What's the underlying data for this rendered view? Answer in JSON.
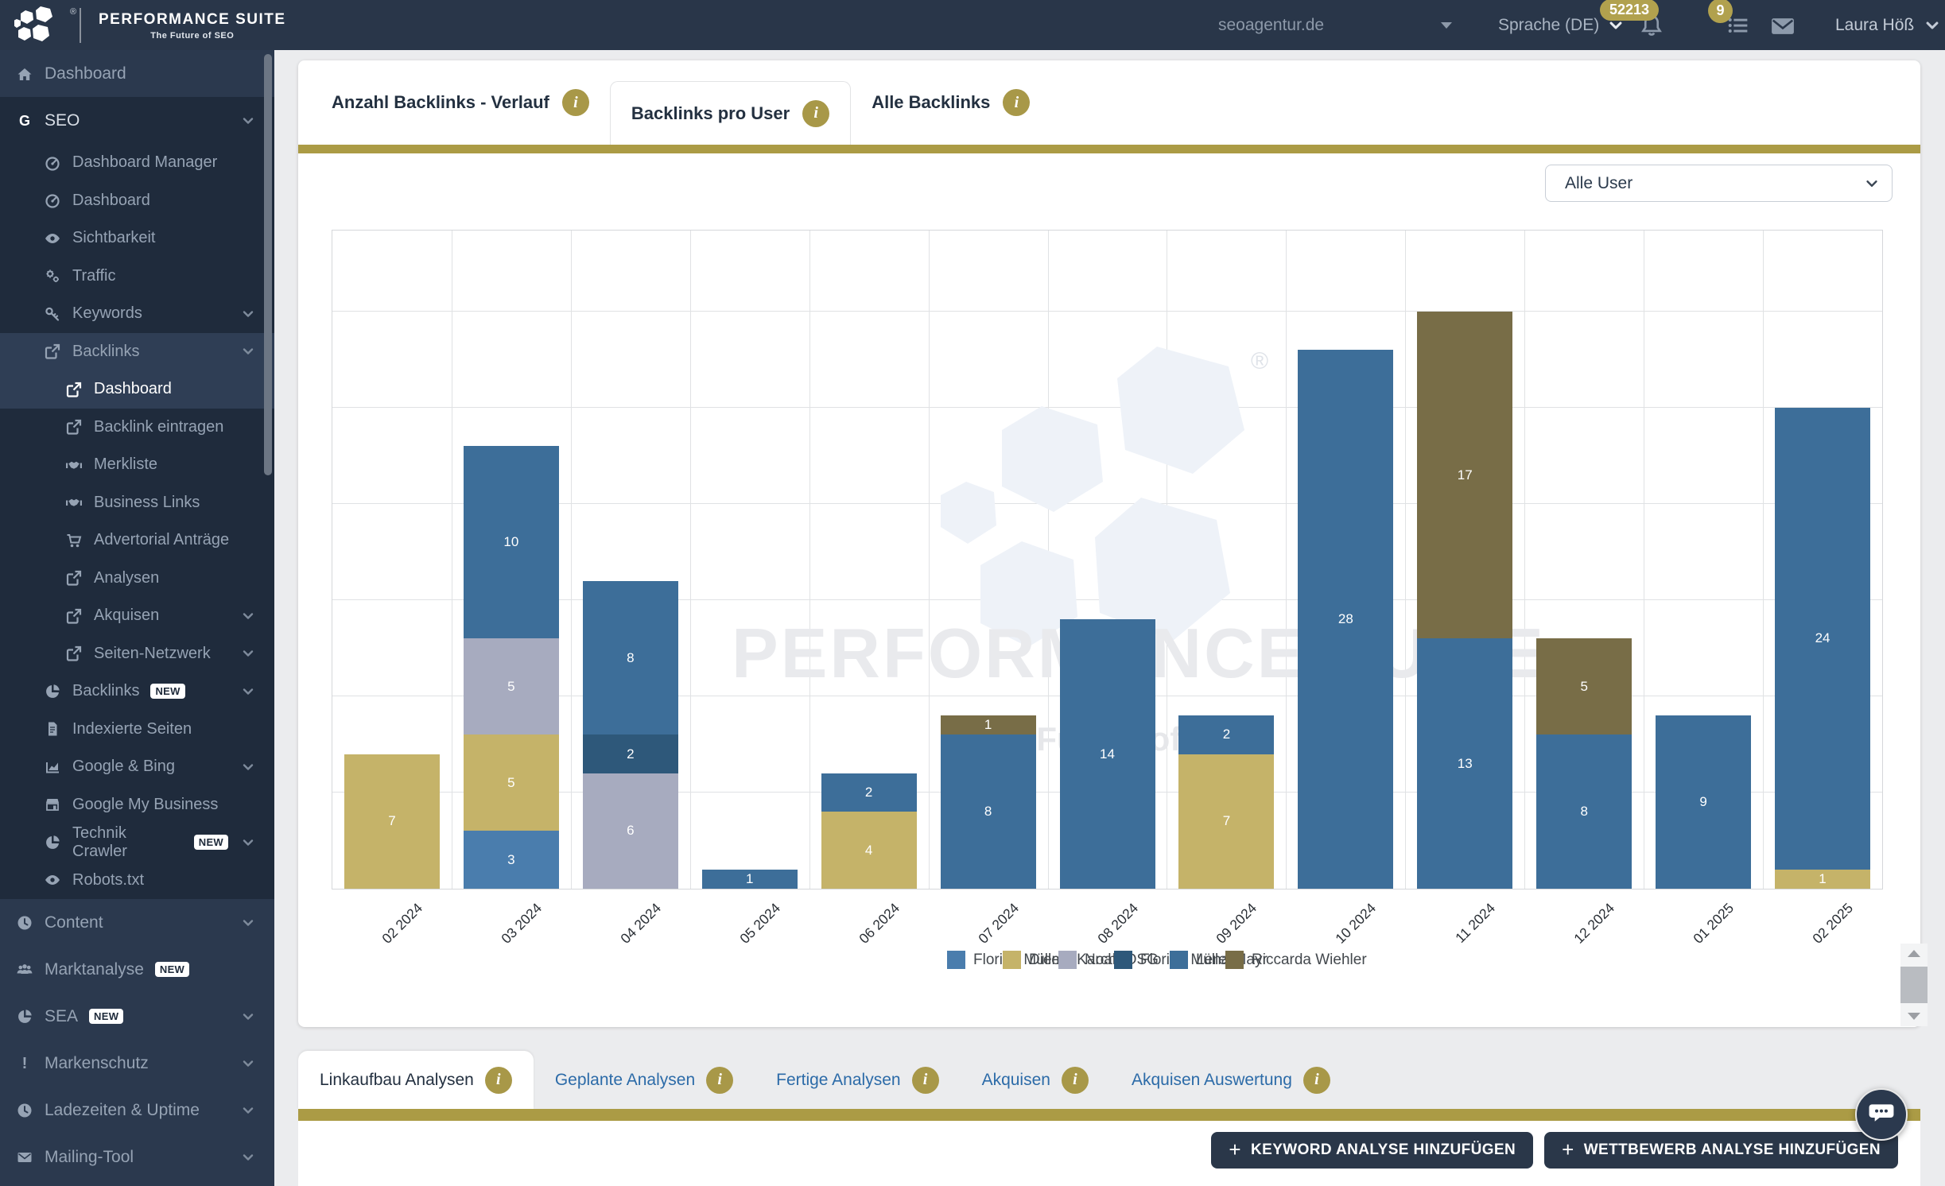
{
  "header": {
    "logo_title": "PERFORMANCE SUITE",
    "logo_tagline": "The Future of SEO",
    "registered_mark": "®",
    "domain": "seoagentur.de",
    "language_label": "Sprache (DE)",
    "notifications_badge": "52213",
    "tasks_badge": "9",
    "user_name": "Laura Höß"
  },
  "sidebar": {
    "items": [
      {
        "label": "Dashboard",
        "icon": "home",
        "level": 0,
        "section": "base"
      },
      {
        "label": "SEO",
        "icon": "g",
        "level": 0,
        "section": "dark",
        "chevron": true,
        "header": true
      },
      {
        "label": "Dashboard Manager",
        "icon": "gauge",
        "level": 1,
        "section": "dark"
      },
      {
        "label": "Dashboard",
        "icon": "gauge",
        "level": 1,
        "section": "dark"
      },
      {
        "label": "Sichtbarkeit",
        "icon": "eye",
        "level": 1,
        "section": "dark"
      },
      {
        "label": "Traffic",
        "icon": "gears",
        "level": 1,
        "section": "dark"
      },
      {
        "label": "Keywords",
        "icon": "key",
        "level": 1,
        "section": "dark",
        "chevron": true
      },
      {
        "label": "Backlinks",
        "icon": "external",
        "level": 1,
        "section": "hl",
        "chevron": true
      },
      {
        "label": "Dashboard",
        "icon": "external",
        "level": 2,
        "section": "hl",
        "active": true
      },
      {
        "label": "Backlink eintragen",
        "icon": "external",
        "level": 2,
        "section": "dark"
      },
      {
        "label": "Merkliste",
        "icon": "handshake",
        "level": 2,
        "section": "dark"
      },
      {
        "label": "Business Links",
        "icon": "handshake",
        "level": 2,
        "section": "dark"
      },
      {
        "label": "Advertorial Anträge",
        "icon": "cart",
        "level": 2,
        "section": "dark"
      },
      {
        "label": "Analysen",
        "icon": "external",
        "level": 2,
        "section": "dark"
      },
      {
        "label": "Akquisen",
        "icon": "external",
        "level": 2,
        "section": "dark",
        "chevron": true
      },
      {
        "label": "Seiten-Netzwerk",
        "icon": "external",
        "level": 2,
        "section": "dark",
        "chevron": true
      },
      {
        "label": "Backlinks",
        "icon": "pie",
        "level": 1,
        "section": "dark",
        "chevron": true,
        "badge": "NEW"
      },
      {
        "label": "Indexierte Seiten",
        "icon": "doc",
        "level": 1,
        "section": "dark"
      },
      {
        "label": "Google & Bing",
        "icon": "chart",
        "level": 1,
        "section": "dark",
        "chevron": true
      },
      {
        "label": "Google My Business",
        "icon": "store",
        "level": 1,
        "section": "dark"
      },
      {
        "label": "Technik Crawler",
        "icon": "pie",
        "level": 1,
        "section": "dark",
        "chevron": true,
        "badge": "NEW"
      },
      {
        "label": "Robots.txt",
        "icon": "eye",
        "level": 1,
        "section": "dark"
      },
      {
        "label": "Content",
        "icon": "clock",
        "level": 0,
        "section": "base",
        "chevron": true
      },
      {
        "label": "Marktanalyse",
        "icon": "users",
        "level": 0,
        "section": "base",
        "badge": "NEW"
      },
      {
        "label": "SEA",
        "icon": "pie",
        "level": 0,
        "section": "base",
        "chevron": true,
        "badge": "NEW"
      },
      {
        "label": "Markenschutz",
        "icon": "excl",
        "level": 0,
        "section": "base",
        "chevron": true
      },
      {
        "label": "Ladezeiten & Uptime",
        "icon": "clock",
        "level": 0,
        "section": "base",
        "chevron": true
      },
      {
        "label": "Mailing-Tool",
        "icon": "mail",
        "level": 0,
        "section": "base",
        "chevron": true
      }
    ]
  },
  "tabs_top": [
    {
      "label": "Anzahl Backlinks - Verlauf",
      "active": false
    },
    {
      "label": "Backlinks pro User",
      "active": true
    },
    {
      "label": "Alle Backlinks",
      "active": false
    }
  ],
  "user_filter": {
    "selected": "Alle User"
  },
  "watermark": {
    "title": "PERFORMANCE SUITE",
    "tagline": "The Future of SEO",
    "registered_mark": "®"
  },
  "chart_data": {
    "type": "bar",
    "stacked": true,
    "title": "Backlinks pro User",
    "xlabel": "",
    "ylabel": "",
    "ylim": [
      0,
      34
    ],
    "grid": true,
    "legend_position": "bottom",
    "categories": [
      "02 2024",
      "03 2024",
      "04 2024",
      "05 2024",
      "06 2024",
      "07 2024",
      "08 2024",
      "09 2024",
      "10 2024",
      "11 2024",
      "12 2024",
      "01 2025",
      "02 2025"
    ],
    "series": [
      {
        "name": "Florian Müller",
        "color": "#4A7DAD",
        "values": [
          0,
          3,
          0,
          0,
          0,
          0,
          0,
          0,
          0,
          0,
          0,
          0,
          0
        ]
      },
      {
        "name": "Diema Karch",
        "color": "#C5B369",
        "values": [
          7,
          5,
          0,
          0,
          4,
          0,
          0,
          7,
          0,
          0,
          0,
          0,
          1
        ]
      },
      {
        "name": "Noah OSG",
        "color": "#A7ABBF",
        "values": [
          0,
          5,
          6,
          0,
          0,
          0,
          0,
          0,
          0,
          0,
          0,
          0,
          0
        ]
      },
      {
        "name": "Florian Müller",
        "color": "#2E587A",
        "values": [
          0,
          0,
          2,
          0,
          0,
          0,
          0,
          0,
          0,
          0,
          0,
          0,
          0
        ]
      },
      {
        "name": "Lena Mayr",
        "color": "#3D6E99",
        "values": [
          0,
          10,
          8,
          1,
          2,
          8,
          14,
          2,
          28,
          13,
          8,
          9,
          24
        ]
      },
      {
        "name": "Riccarda Wiehler",
        "color": "#786D47",
        "values": [
          0,
          0,
          0,
          0,
          0,
          1,
          0,
          0,
          0,
          17,
          5,
          0,
          0
        ]
      }
    ]
  },
  "tabs_bottom": [
    {
      "label": "Linkaufbau Analysen",
      "active": true
    },
    {
      "label": "Geplante Analysen",
      "active": false
    },
    {
      "label": "Fertige Analysen",
      "active": false
    },
    {
      "label": "Akquisen",
      "active": false
    },
    {
      "label": "Akquisen Auswertung",
      "active": false
    }
  ],
  "actions": {
    "keyword_button": "KEYWORD ANALYSE HINZUFÜGEN",
    "competitor_button": "WETTBEWERB ANALYSE HINZUFÜGEN",
    "plus": "+"
  },
  "colors": {
    "accent_gold": "#AB9B45",
    "navy": "#2B394E",
    "badge_gold": "#B1A14E"
  }
}
